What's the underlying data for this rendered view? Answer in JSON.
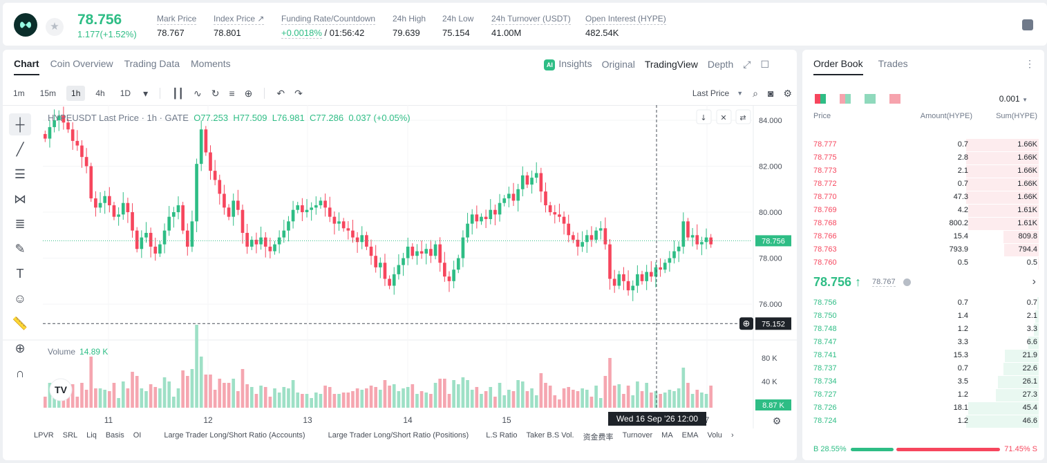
{
  "ticker": {
    "last": "78.756",
    "change": "1.177(+1.52%)"
  },
  "stats": [
    {
      "label": "Mark Price",
      "value": "78.767"
    },
    {
      "label": "Index Price ↗",
      "value": "78.801"
    },
    {
      "label": "Funding Rate/Countdown",
      "value": "+0.0018%",
      "value2": " / 01:56:42"
    },
    {
      "label": "24h High",
      "value": "79.639"
    },
    {
      "label": "24h Low",
      "value": "75.154"
    },
    {
      "label": "24h Turnover (USDT)",
      "value": "41.00M"
    },
    {
      "label": "Open Interest (HYPE)",
      "value": "482.54K"
    }
  ],
  "tabs": [
    "Chart",
    "Coin Overview",
    "Trading Data",
    "Moments"
  ],
  "views": {
    "insights": "Insights",
    "original": "Original",
    "tradingview": "TradingView",
    "depth": "Depth"
  },
  "timeframes": [
    "1m",
    "15m",
    "1h",
    "4h",
    "1D"
  ],
  "last_price_label": "Last Price",
  "legend": {
    "symbol": "HYPEUSDT Last Price · 1h · GATE",
    "o": "O77.253",
    "h": "H77.509",
    "l": "L76.981",
    "c": "C77.286",
    "chg": "0.037 (+0.05%)"
  },
  "volume": {
    "label": "Volume",
    "value": "14.89 K",
    "last": "8.87 K"
  },
  "price_axis": [
    "84.000",
    "82.000",
    "80.000",
    "78.000",
    "76.000"
  ],
  "vol_axis": [
    "80 K",
    "40 K"
  ],
  "current_price": "78.756",
  "cross_price": "75.152",
  "x_labels": [
    "11",
    "12",
    "13",
    "14",
    "15",
    "7"
  ],
  "crosshair_time": "Wed 16 Sep '26   12:00",
  "indicators": [
    "LPVR",
    "SRL",
    "Liq",
    "Basis",
    "OI",
    "Large Trader Long/Short Ratio (Accounts)",
    "Large Trader Long/Short Ratio (Positions)",
    "L.S Ratio",
    "Taker B.S Vol.",
    "资金费率",
    "Turnover",
    "MA",
    "EMA",
    "Volu"
  ],
  "orderbook": {
    "tabs": [
      "Order Book",
      "Trades"
    ],
    "tick": "0.001",
    "cols": [
      "Price",
      "Amount(HYPE)",
      "Sum(HYPE)"
    ],
    "asks": [
      [
        "78.777",
        "0.7",
        "1.66K"
      ],
      [
        "78.775",
        "2.8",
        "1.66K"
      ],
      [
        "78.773",
        "2.1",
        "1.66K"
      ],
      [
        "78.772",
        "0.7",
        "1.66K"
      ],
      [
        "78.770",
        "47.3",
        "1.66K"
      ],
      [
        "78.769",
        "4.2",
        "1.61K"
      ],
      [
        "78.768",
        "800.2",
        "1.61K"
      ],
      [
        "78.766",
        "15.4",
        "809.8"
      ],
      [
        "78.763",
        "793.9",
        "794.4"
      ],
      [
        "78.760",
        "0.5",
        "0.5"
      ]
    ],
    "ask_depth": [
      1.0,
      1.0,
      1.0,
      1.0,
      1.0,
      0.97,
      0.97,
      0.49,
      0.48,
      0.003
    ],
    "mid": "78.756 ↑",
    "mid_mark": "78.767",
    "bids": [
      [
        "78.756",
        "0.7",
        "0.7"
      ],
      [
        "78.750",
        "1.4",
        "2.1"
      ],
      [
        "78.748",
        "1.2",
        "3.3"
      ],
      [
        "78.747",
        "3.3",
        "6.6"
      ],
      [
        "78.741",
        "15.3",
        "21.9"
      ],
      [
        "78.737",
        "0.7",
        "22.6"
      ],
      [
        "78.734",
        "3.5",
        "26.1"
      ],
      [
        "78.727",
        "1.2",
        "27.3"
      ],
      [
        "78.726",
        "18.1",
        "45.4"
      ],
      [
        "78.724",
        "1.2",
        "46.6"
      ]
    ],
    "bid_depth": [
      0.015,
      0.045,
      0.07,
      0.14,
      0.47,
      0.49,
      0.56,
      0.59,
      0.97,
      1.0
    ],
    "buy": "B 28.55%",
    "sell": "71.45% S",
    "buy_ratio": 0.2855
  },
  "colors": {
    "up": "#2ebd85",
    "down": "#f6465d"
  },
  "chart_data": {
    "type": "candlestick",
    "title": "HYPEUSDT Last Price · 1h · GATE",
    "ylim": [
      74.5,
      84.6
    ],
    "close": [
      83.2,
      83.7,
      84.0,
      84.2,
      83.9,
      83.6,
      83.1,
      82.9,
      82.4,
      82.0,
      80.6,
      80.2,
      80.4,
      80.7,
      80.3,
      79.8,
      79.9,
      80.4,
      80.0,
      79.2,
      78.4,
      78.9,
      79.1,
      78.5,
      78.2,
      78.6,
      79.2,
      79.8,
      80.0,
      80.3,
      79.2,
      78.5,
      79.6,
      82.1,
      83.6,
      82.6,
      81.8,
      81.4,
      80.8,
      80.2,
      79.8,
      80.5,
      80.1,
      79.1,
      78.5,
      78.8,
      78.6,
      78.9,
      78.5,
      78.3,
      78.6,
      78.9,
      79.2,
      79.6,
      80.1,
      80.3,
      80.0,
      80.1,
      80.2,
      80.3,
      80.5,
      80.2,
      79.8,
      79.5,
      79.6,
      79.3,
      79.2,
      78.9,
      78.7,
      79.0,
      78.5,
      78.1,
      77.6,
      77.8,
      77.1,
      76.8,
      77.3,
      77.7,
      78.0,
      78.5,
      78.1,
      78.3,
      78.2,
      78.4,
      78.1,
      78.6,
      77.8,
      77.2,
      77.0,
      77.5,
      78.0,
      78.9,
      79.5,
      79.9,
      79.6,
      79.8,
      79.7,
      80.1,
      79.9,
      80.4,
      80.6,
      80.8,
      80.5,
      81.0,
      81.6,
      81.2,
      81.5,
      81.7,
      80.9,
      80.3,
      80.0,
      79.9,
      79.8,
      79.5,
      79.0,
      78.8,
      78.5,
      78.7,
      79.0,
      78.8,
      79.2,
      79.3,
      78.6,
      77.1,
      76.8,
      77.3,
      77.0,
      76.6,
      76.8,
      77.3,
      77.0,
      77.4,
      77.2,
      77.6,
      77.5,
      77.8,
      78.0,
      78.3,
      78.5,
      79.6,
      78.9,
      79.0,
      78.6,
      78.7,
      78.9,
      78.6
    ]
  }
}
